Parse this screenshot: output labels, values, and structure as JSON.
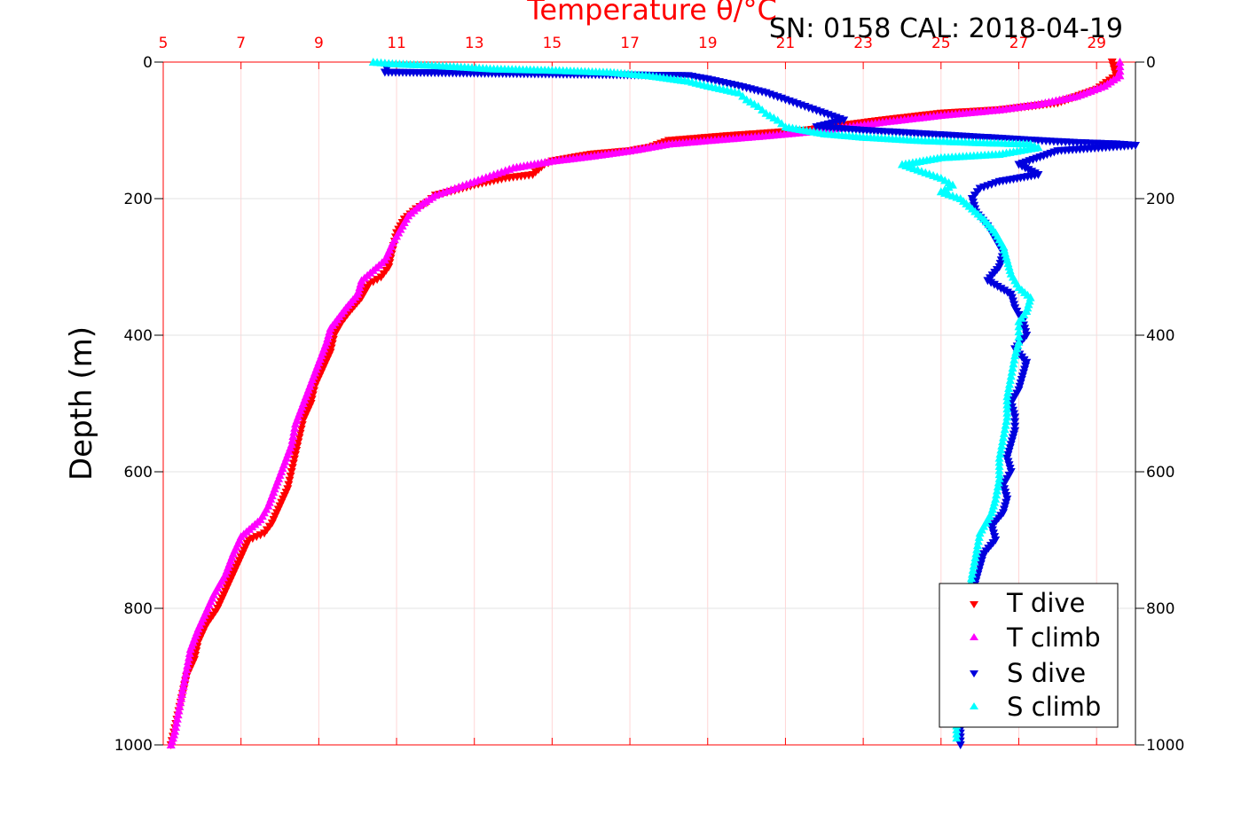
{
  "chart_data": {
    "type": "scatter",
    "title": "Temperature θ/°C",
    "subtitle": "SN: 0158  CAL: 2018-04-19",
    "ylabel": "Depth (m)",
    "x_ticks": [
      "5",
      "7",
      "9",
      "11",
      "13",
      "15",
      "17",
      "19",
      "21",
      "23",
      "25",
      "27",
      "29"
    ],
    "y_ticks": [
      "0",
      "200",
      "400",
      "600",
      "800",
      "1000"
    ],
    "xlim": [
      5,
      30
    ],
    "ylim": [
      0,
      1000
    ],
    "y_reversed": true,
    "grid": true,
    "legend_position": "bottom-right",
    "colors": {
      "t_dive": "#ff0000",
      "t_climb": "#ff00ff",
      "s_dive": "#0000dd",
      "s_climb": "#00ffff",
      "axis_top": "#ff0000"
    },
    "series": [
      {
        "name": "T dive",
        "marker": "triangle-down",
        "color": "#ff0000",
        "points": [
          [
            29.4,
            0
          ],
          [
            29.5,
            20
          ],
          [
            29.0,
            40
          ],
          [
            28.0,
            60
          ],
          [
            26.5,
            70
          ],
          [
            25.0,
            75
          ],
          [
            23.5,
            85
          ],
          [
            21.5,
            100
          ],
          [
            19.5,
            108
          ],
          [
            18.0,
            115
          ],
          [
            17.5,
            125
          ],
          [
            17.0,
            130
          ],
          [
            16.0,
            135
          ],
          [
            15.5,
            140
          ],
          [
            15.0,
            145
          ],
          [
            14.8,
            150
          ],
          [
            14.5,
            165
          ],
          [
            13.8,
            170
          ],
          [
            13.0,
            180
          ],
          [
            12.5,
            188
          ],
          [
            12.0,
            195
          ],
          [
            11.8,
            205
          ],
          [
            11.5,
            215
          ],
          [
            11.2,
            230
          ],
          [
            11.0,
            250
          ],
          [
            10.9,
            275
          ],
          [
            10.8,
            300
          ],
          [
            10.6,
            315
          ],
          [
            10.3,
            325
          ],
          [
            10.1,
            345
          ],
          [
            9.8,
            365
          ],
          [
            9.6,
            380
          ],
          [
            9.4,
            400
          ],
          [
            9.3,
            425
          ],
          [
            9.1,
            450
          ],
          [
            8.9,
            475
          ],
          [
            8.8,
            500
          ],
          [
            8.6,
            525
          ],
          [
            8.5,
            550
          ],
          [
            8.4,
            575
          ],
          [
            8.3,
            600
          ],
          [
            8.2,
            625
          ],
          [
            8.0,
            650
          ],
          [
            7.8,
            675
          ],
          [
            7.6,
            690
          ],
          [
            7.2,
            700
          ],
          [
            7.0,
            725
          ],
          [
            6.8,
            750
          ],
          [
            6.6,
            775
          ],
          [
            6.4,
            800
          ],
          [
            6.1,
            825
          ],
          [
            5.9,
            850
          ],
          [
            5.8,
            875
          ],
          [
            5.6,
            900
          ],
          [
            5.5,
            925
          ],
          [
            5.4,
            950
          ],
          [
            5.3,
            975
          ],
          [
            5.2,
            1000
          ]
        ]
      },
      {
        "name": "T climb",
        "marker": "triangle-up",
        "color": "#ff00ff",
        "points": [
          [
            29.6,
            0
          ],
          [
            29.6,
            20
          ],
          [
            29.2,
            35
          ],
          [
            28.5,
            50
          ],
          [
            27.5,
            62
          ],
          [
            26.5,
            70
          ],
          [
            25.0,
            78
          ],
          [
            23.5,
            88
          ],
          [
            22.0,
            100
          ],
          [
            20.5,
            108
          ],
          [
            19.0,
            115
          ],
          [
            18.0,
            120
          ],
          [
            17.0,
            130
          ],
          [
            16.0,
            138
          ],
          [
            15.0,
            145
          ],
          [
            14.0,
            155
          ],
          [
            13.5,
            165
          ],
          [
            13.0,
            175
          ],
          [
            12.5,
            185
          ],
          [
            12.0,
            195
          ],
          [
            11.6,
            210
          ],
          [
            11.3,
            225
          ],
          [
            11.1,
            245
          ],
          [
            10.9,
            265
          ],
          [
            10.7,
            290
          ],
          [
            10.4,
            305
          ],
          [
            10.1,
            320
          ],
          [
            10.0,
            340
          ],
          [
            9.7,
            360
          ],
          [
            9.3,
            390
          ],
          [
            9.2,
            410
          ],
          [
            9.0,
            440
          ],
          [
            8.8,
            470
          ],
          [
            8.6,
            500
          ],
          [
            8.4,
            530
          ],
          [
            8.3,
            560
          ],
          [
            8.1,
            590
          ],
          [
            7.9,
            620
          ],
          [
            7.7,
            650
          ],
          [
            7.5,
            670
          ],
          [
            7.0,
            695
          ],
          [
            6.8,
            720
          ],
          [
            6.6,
            750
          ],
          [
            6.3,
            780
          ],
          [
            6.1,
            805
          ],
          [
            5.9,
            830
          ],
          [
            5.7,
            860
          ],
          [
            5.6,
            890
          ],
          [
            5.5,
            920
          ],
          [
            5.4,
            950
          ],
          [
            5.3,
            980
          ],
          [
            5.2,
            1000
          ]
        ]
      },
      {
        "name": "S dive",
        "marker": "triangle-down",
        "color": "#0000dd",
        "points": [
          [
            10.8,
            5
          ],
          [
            10.7,
            15
          ],
          [
            18.5,
            20
          ],
          [
            19.0,
            25
          ],
          [
            19.8,
            35
          ],
          [
            20.5,
            45
          ],
          [
            21.0,
            55
          ],
          [
            21.5,
            65
          ],
          [
            22.0,
            75
          ],
          [
            22.5,
            85
          ],
          [
            21.8,
            95
          ],
          [
            23.0,
            100
          ],
          [
            24.5,
            105
          ],
          [
            26.0,
            110
          ],
          [
            27.5,
            115
          ],
          [
            28.5,
            118
          ],
          [
            29.5,
            120
          ],
          [
            30.0,
            122
          ],
          [
            28.0,
            130
          ],
          [
            27.0,
            150
          ],
          [
            27.5,
            165
          ],
          [
            26.5,
            175
          ],
          [
            26.0,
            185
          ],
          [
            25.8,
            200
          ],
          [
            25.9,
            220
          ],
          [
            26.2,
            240
          ],
          [
            26.4,
            260
          ],
          [
            26.6,
            280
          ],
          [
            26.5,
            300
          ],
          [
            26.2,
            320
          ],
          [
            26.8,
            340
          ],
          [
            26.9,
            360
          ],
          [
            27.1,
            380
          ],
          [
            27.2,
            400
          ],
          [
            26.9,
            420
          ],
          [
            27.2,
            440
          ],
          [
            27.1,
            460
          ],
          [
            27.0,
            480
          ],
          [
            26.8,
            500
          ],
          [
            26.9,
            520
          ],
          [
            26.9,
            540
          ],
          [
            26.8,
            560
          ],
          [
            26.7,
            580
          ],
          [
            26.8,
            600
          ],
          [
            26.6,
            620
          ],
          [
            26.7,
            640
          ],
          [
            26.6,
            660
          ],
          [
            26.3,
            680
          ],
          [
            26.4,
            700
          ],
          [
            26.1,
            720
          ],
          [
            26.0,
            740
          ],
          [
            25.9,
            760
          ],
          [
            25.8,
            780
          ],
          [
            25.8,
            800
          ],
          [
            25.7,
            820
          ],
          [
            25.7,
            840
          ],
          [
            25.6,
            860
          ],
          [
            25.6,
            880
          ],
          [
            25.6,
            900
          ],
          [
            25.5,
            930
          ],
          [
            25.5,
            960
          ],
          [
            25.5,
            1000
          ]
        ]
      },
      {
        "name": "S climb",
        "marker": "triangle-up",
        "color": "#00ffff",
        "points": [
          [
            10.4,
            0
          ],
          [
            10.8,
            2
          ],
          [
            12.0,
            5
          ],
          [
            13.5,
            10
          ],
          [
            15.0,
            12
          ],
          [
            16.5,
            15
          ],
          [
            17.5,
            20
          ],
          [
            18.5,
            28
          ],
          [
            19.0,
            35
          ],
          [
            19.8,
            45
          ],
          [
            20.0,
            55
          ],
          [
            20.3,
            65
          ],
          [
            20.5,
            75
          ],
          [
            20.8,
            85
          ],
          [
            21.0,
            95
          ],
          [
            22.0,
            105
          ],
          [
            23.0,
            110
          ],
          [
            24.5,
            115
          ],
          [
            26.0,
            118
          ],
          [
            27.3,
            120
          ],
          [
            27.5,
            125
          ],
          [
            26.5,
            135
          ],
          [
            25.0,
            140
          ],
          [
            24.0,
            150
          ],
          [
            24.5,
            160
          ],
          [
            25.0,
            170
          ],
          [
            25.3,
            180
          ],
          [
            25.0,
            190
          ],
          [
            25.5,
            200
          ],
          [
            25.8,
            215
          ],
          [
            26.1,
            230
          ],
          [
            26.4,
            250
          ],
          [
            26.6,
            270
          ],
          [
            26.7,
            290
          ],
          [
            26.8,
            310
          ],
          [
            27.0,
            330
          ],
          [
            27.3,
            345
          ],
          [
            27.2,
            365
          ],
          [
            27.0,
            380
          ],
          [
            27.0,
            395
          ],
          [
            27.0,
            410
          ],
          [
            26.9,
            430
          ],
          [
            26.8,
            460
          ],
          [
            26.7,
            490
          ],
          [
            26.7,
            520
          ],
          [
            26.6,
            550
          ],
          [
            26.5,
            580
          ],
          [
            26.5,
            610
          ],
          [
            26.4,
            640
          ],
          [
            26.3,
            660
          ],
          [
            26.0,
            690
          ],
          [
            25.9,
            720
          ],
          [
            25.8,
            750
          ],
          [
            25.7,
            780
          ],
          [
            25.6,
            810
          ],
          [
            25.6,
            840
          ],
          [
            25.6,
            870
          ],
          [
            25.5,
            900
          ],
          [
            25.5,
            930
          ],
          [
            25.4,
            960
          ],
          [
            25.4,
            990
          ]
        ]
      }
    ]
  }
}
